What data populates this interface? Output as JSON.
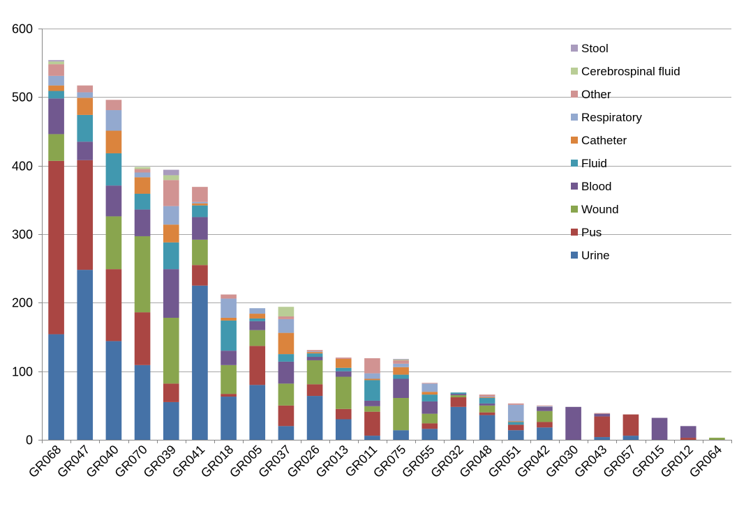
{
  "chart_data": {
    "type": "bar",
    "stacked": true,
    "title": "",
    "xlabel": "",
    "ylabel": "",
    "ylim": [
      0,
      600
    ],
    "yticks": [
      0,
      100,
      200,
      300,
      400,
      500,
      600
    ],
    "grid": true,
    "legend_position": "top-right",
    "categories": [
      "GR068",
      "GR047",
      "GR040",
      "GR070",
      "GR039",
      "GR041",
      "GR018",
      "GR005",
      "GR037",
      "GR026",
      "GR013",
      "GR011",
      "GR075",
      "GR055",
      "GR032",
      "GR048",
      "GR051",
      "GR042",
      "GR030",
      "GR043",
      "GR057",
      "GR015",
      "GR012",
      "GR064"
    ],
    "series": [
      {
        "name": "Urine",
        "color": "#4572a7",
        "values": [
          154,
          248,
          144,
          109,
          55,
          225,
          63,
          80,
          20,
          64,
          30,
          6,
          14,
          16,
          48,
          36,
          14,
          18,
          0,
          4,
          6,
          0,
          0,
          0
        ]
      },
      {
        "name": "Pus",
        "color": "#aa4643",
        "values": [
          253,
          160,
          105,
          77,
          27,
          30,
          4,
          57,
          30,
          17,
          15,
          35,
          0,
          8,
          14,
          4,
          8,
          8,
          0,
          30,
          31,
          0,
          3,
          0
        ]
      },
      {
        "name": "Wound",
        "color": "#89a54e",
        "values": [
          39,
          0,
          77,
          111,
          96,
          37,
          42,
          23,
          32,
          35,
          47,
          8,
          47,
          14,
          3,
          10,
          0,
          16,
          0,
          0,
          0,
          0,
          0,
          3
        ]
      },
      {
        "name": "Blood",
        "color": "#71588f",
        "values": [
          52,
          27,
          45,
          39,
          71,
          33,
          21,
          13,
          32,
          5,
          8,
          8,
          28,
          18,
          2,
          3,
          0,
          6,
          48,
          4,
          0,
          32,
          17,
          0
        ]
      },
      {
        "name": "Fluid",
        "color": "#4198af",
        "values": [
          11,
          39,
          47,
          23,
          39,
          17,
          44,
          4,
          11,
          5,
          5,
          30,
          6,
          10,
          2,
          8,
          4,
          0,
          0,
          0,
          0,
          0,
          0,
          0
        ]
      },
      {
        "name": "Catheter",
        "color": "#db843d",
        "values": [
          8,
          25,
          33,
          24,
          26,
          3,
          4,
          7,
          31,
          2,
          13,
          2,
          11,
          4,
          0,
          1,
          1,
          0,
          0,
          0,
          0,
          0,
          0,
          0
        ]
      },
      {
        "name": "Respiratory",
        "color": "#93a9cf",
        "values": [
          14,
          8,
          30,
          7,
          27,
          2,
          28,
          8,
          20,
          1,
          0,
          8,
          5,
          12,
          0,
          1,
          24,
          1,
          0,
          0,
          0,
          0,
          0,
          0
        ]
      },
      {
        "name": "Other",
        "color": "#d19392",
        "values": [
          17,
          10,
          15,
          5,
          38,
          22,
          6,
          0,
          4,
          2,
          2,
          22,
          5,
          1,
          0,
          3,
          2,
          1,
          0,
          1,
          0,
          0,
          0,
          0
        ]
      },
      {
        "name": "Cerebrospinal fluid",
        "color": "#b9cd96",
        "values": [
          4,
          0,
          0,
          3,
          7,
          0,
          0,
          0,
          14,
          0,
          0,
          0,
          1,
          0,
          0,
          0,
          0,
          0,
          0,
          0,
          0,
          0,
          0,
          0
        ]
      },
      {
        "name": "Stool",
        "color": "#a99bbd",
        "values": [
          2,
          0,
          0,
          0,
          8,
          0,
          0,
          0,
          0,
          0,
          0,
          0,
          1,
          0,
          0,
          0,
          0,
          0,
          0,
          0,
          0,
          0,
          0,
          0
        ]
      }
    ]
  }
}
